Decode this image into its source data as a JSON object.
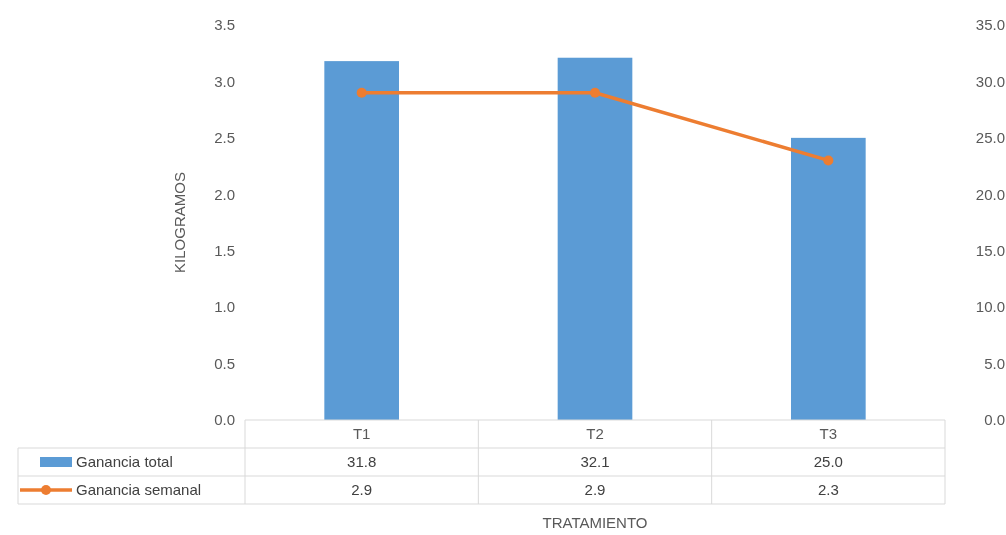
{
  "chart_data": {
    "type": "bar",
    "xlabel": "TRATAMIENTO",
    "ylabel": "KILOGRAMOS",
    "categories": [
      "T1",
      "T2",
      "T3"
    ],
    "series": [
      {
        "name": "Ganancia total",
        "axis": "y2",
        "color": "#5b9bd5",
        "values": [
          31.8,
          32.1,
          25.0
        ],
        "value_labels": [
          "31.8",
          "32.1",
          "25.0"
        ]
      },
      {
        "name": "Ganancia semanal",
        "type": "line",
        "axis": "y",
        "color": "#ed7d31",
        "values": [
          2.9,
          2.9,
          2.3
        ],
        "value_labels": [
          "2.9",
          "2.9",
          "2.3"
        ]
      }
    ],
    "ylim": [
      0,
      3.5
    ],
    "yticks": [
      {
        "value": 0,
        "label": "0.0"
      },
      {
        "value": 0.5,
        "label": "0.5"
      },
      {
        "value": 1,
        "label": "1.0"
      },
      {
        "value": 1.5,
        "label": "1.5"
      },
      {
        "value": 2,
        "label": "2.0"
      },
      {
        "value": 2.5,
        "label": "2.5"
      },
      {
        "value": 3,
        "label": "3.0"
      },
      {
        "value": 3.5,
        "label": "3.5"
      }
    ],
    "y2lim": [
      0,
      35
    ],
    "y2ticks": [
      {
        "value": 0,
        "label": "0.0"
      },
      {
        "value": 5,
        "label": "5.0"
      },
      {
        "value": 10,
        "label": "10.0"
      },
      {
        "value": 15,
        "label": "15.0"
      },
      {
        "value": 20,
        "label": "20.0"
      },
      {
        "value": 25,
        "label": "25.0"
      },
      {
        "value": 30,
        "label": "30.0"
      },
      {
        "value": 35,
        "label": "35.0"
      }
    ],
    "legend": "bottom",
    "marker": "circle"
  }
}
